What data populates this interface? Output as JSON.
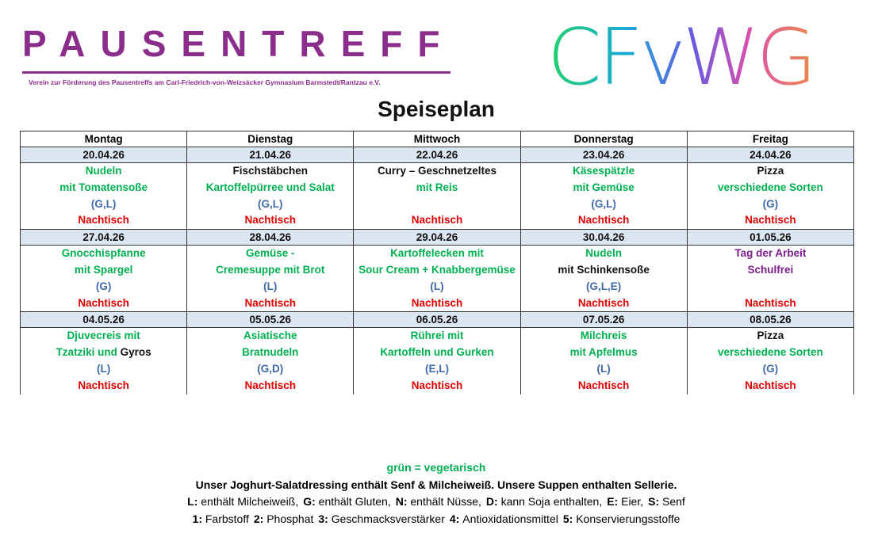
{
  "header": {
    "title": "PAUSENTREFF",
    "subtitle": "Verein zur Förderung des Pausentreffs am Carl-Friedrich-von-Weizsäcker Gymnasium Barmstedt/Rantzau e.V.",
    "logo": "CFvWG"
  },
  "menu": {
    "title": "Speiseplan",
    "styles": {
      "veg": "#00b050",
      "plain": "#111111",
      "allergen": "#3f6aa8",
      "dessert": "#e00000",
      "holiday": "#7a1f8c"
    },
    "days": [
      "Montag",
      "Dienstag",
      "Mittwoch",
      "Donnerstag",
      "Freitag"
    ],
    "weeks": [
      {
        "cells": [
          {
            "date": "20.04.26",
            "lines": [
              {
                "text": "Nudeln",
                "style": "veg"
              },
              {
                "text": "mit Tomatensoße",
                "style": "veg"
              },
              {
                "text": "(G,L)",
                "style": "allergen"
              }
            ],
            "dessert": "Nachtisch"
          },
          {
            "date": "21.04.26",
            "lines": [
              {
                "text": "Fischstäbchen",
                "style": "plain"
              },
              {
                "text": "Kartoffelpürree und Salat",
                "style": "veg"
              },
              {
                "text": "(G,L)",
                "style": "allergen"
              }
            ],
            "dessert": "Nachtisch"
          },
          {
            "date": "22.04.26",
            "lines": [
              {
                "text": "Curry – Geschnetzeltes",
                "style": "plain"
              },
              {
                "text": "mit Reis",
                "style": "veg"
              }
            ],
            "dessert": "Nachtisch"
          },
          {
            "date": "23.04.26",
            "lines": [
              {
                "text": "Käsespätzle",
                "style": "veg"
              },
              {
                "text": "mit Gemüse",
                "style": "veg"
              },
              {
                "text": "(G,L)",
                "style": "allergen"
              }
            ],
            "dessert": "Nachtisch"
          },
          {
            "date": "24.04.26",
            "lines": [
              {
                "text": "Pizza",
                "style": "plain"
              },
              {
                "text": "verschiedene Sorten",
                "style": "veg"
              },
              {
                "text": "(G)",
                "style": "allergen"
              }
            ],
            "dessert": "Nachtisch"
          }
        ]
      },
      {
        "cells": [
          {
            "date": "27.04.26",
            "lines": [
              {
                "text": "Gnocchispfanne",
                "style": "veg"
              },
              {
                "text": "mit Spargel",
                "style": "veg"
              },
              {
                "text": "(G)",
                "style": "allergen"
              }
            ],
            "dessert": "Nachtisch"
          },
          {
            "date": "28.04.26",
            "lines": [
              {
                "text": "Gemüse -",
                "style": "veg"
              },
              {
                "text": "Cremesuppe mit Brot",
                "style": "veg"
              },
              {
                "text": "(L)",
                "style": "allergen"
              }
            ],
            "dessert": "Nachtisch"
          },
          {
            "date": "29.04.26",
            "lines": [
              {
                "text": "Kartoffelecken mit",
                "style": "veg"
              },
              {
                "text": "Sour Cream + Knabbergemüse",
                "style": "veg"
              },
              {
                "text": "(L)",
                "style": "allergen"
              }
            ],
            "dessert": "Nachtisch"
          },
          {
            "date": "30.04.26",
            "lines": [
              {
                "text": "Nudeln",
                "style": "veg"
              },
              {
                "text": "mit Schinkensoße",
                "style": "plain"
              },
              {
                "text": "(G,L,E)",
                "style": "allergen"
              }
            ],
            "dessert": "Nachtisch"
          },
          {
            "date": "01.05.26",
            "lines": [
              {
                "text": "Tag der Arbeit",
                "style": "holiday"
              },
              {
                "text": "Schulfrei",
                "style": "holiday"
              }
            ],
            "dessert": "Nachtisch"
          }
        ]
      },
      {
        "cells": [
          {
            "date": "04.05.26",
            "lines": [
              {
                "text": "Djuvecreis mit",
                "style": "veg"
              },
              {
                "parts": [
                  {
                    "text": "Tzatziki und",
                    "style": "veg"
                  },
                  {
                    "text": "Gyros",
                    "style": "plain"
                  }
                ]
              },
              {
                "text": "(L)",
                "style": "allergen"
              }
            ],
            "dessert": "Nachtisch"
          },
          {
            "date": "05.05.26",
            "lines": [
              {
                "text": "Asiatische",
                "style": "veg"
              },
              {
                "text": "Bratnudeln",
                "style": "veg"
              },
              {
                "text": "(G,D)",
                "style": "allergen"
              }
            ],
            "dessert": "Nachtisch"
          },
          {
            "date": "06.05.26",
            "lines": [
              {
                "text": "Rührei mit",
                "style": "veg"
              },
              {
                "text": "Kartoffeln und Gurken",
                "style": "veg"
              },
              {
                "text": "(E,L)",
                "style": "allergen"
              }
            ],
            "dessert": "Nachtisch"
          },
          {
            "date": "07.05.26",
            "lines": [
              {
                "text": "Milchreis",
                "style": "veg"
              },
              {
                "text": "mit Apfelmus",
                "style": "veg"
              },
              {
                "text": "(L)",
                "style": "allergen"
              }
            ],
            "dessert": "Nachtisch"
          },
          {
            "date": "08.05.26",
            "lines": [
              {
                "text": "Pizza",
                "style": "plain"
              },
              {
                "text": "verschiedene Sorten",
                "style": "veg"
              },
              {
                "text": "(G)",
                "style": "allergen"
              }
            ],
            "dessert": "Nachtisch"
          }
        ]
      }
    ]
  },
  "footer": {
    "veg_note": "grün = vegetarisch",
    "dressing_note": "Unser Joghurt-Salatdressing enthält Senf & Milcheiweiß. Unsere Suppen enthalten Sellerie.",
    "allergens": [
      {
        "key": "L:",
        "text": "enthält Milcheiweiß,"
      },
      {
        "key": "G:",
        "text": "enthält Gluten,"
      },
      {
        "key": "N:",
        "text": "enthält Nüsse,"
      },
      {
        "key": "D:",
        "text": "kann Soja enthalten,"
      },
      {
        "key": "E:",
        "text": "Eier,"
      },
      {
        "key": "S:",
        "text": "Senf"
      }
    ],
    "additives": [
      {
        "key": "1:",
        "text": "Farbstoff"
      },
      {
        "key": "2:",
        "text": "Phosphat"
      },
      {
        "key": "3:",
        "text": "Geschmacksverstärker"
      },
      {
        "key": "4:",
        "text": "Antioxidationsmittel"
      },
      {
        "key": "5:",
        "text": "Konservierungsstoffe"
      }
    ]
  }
}
